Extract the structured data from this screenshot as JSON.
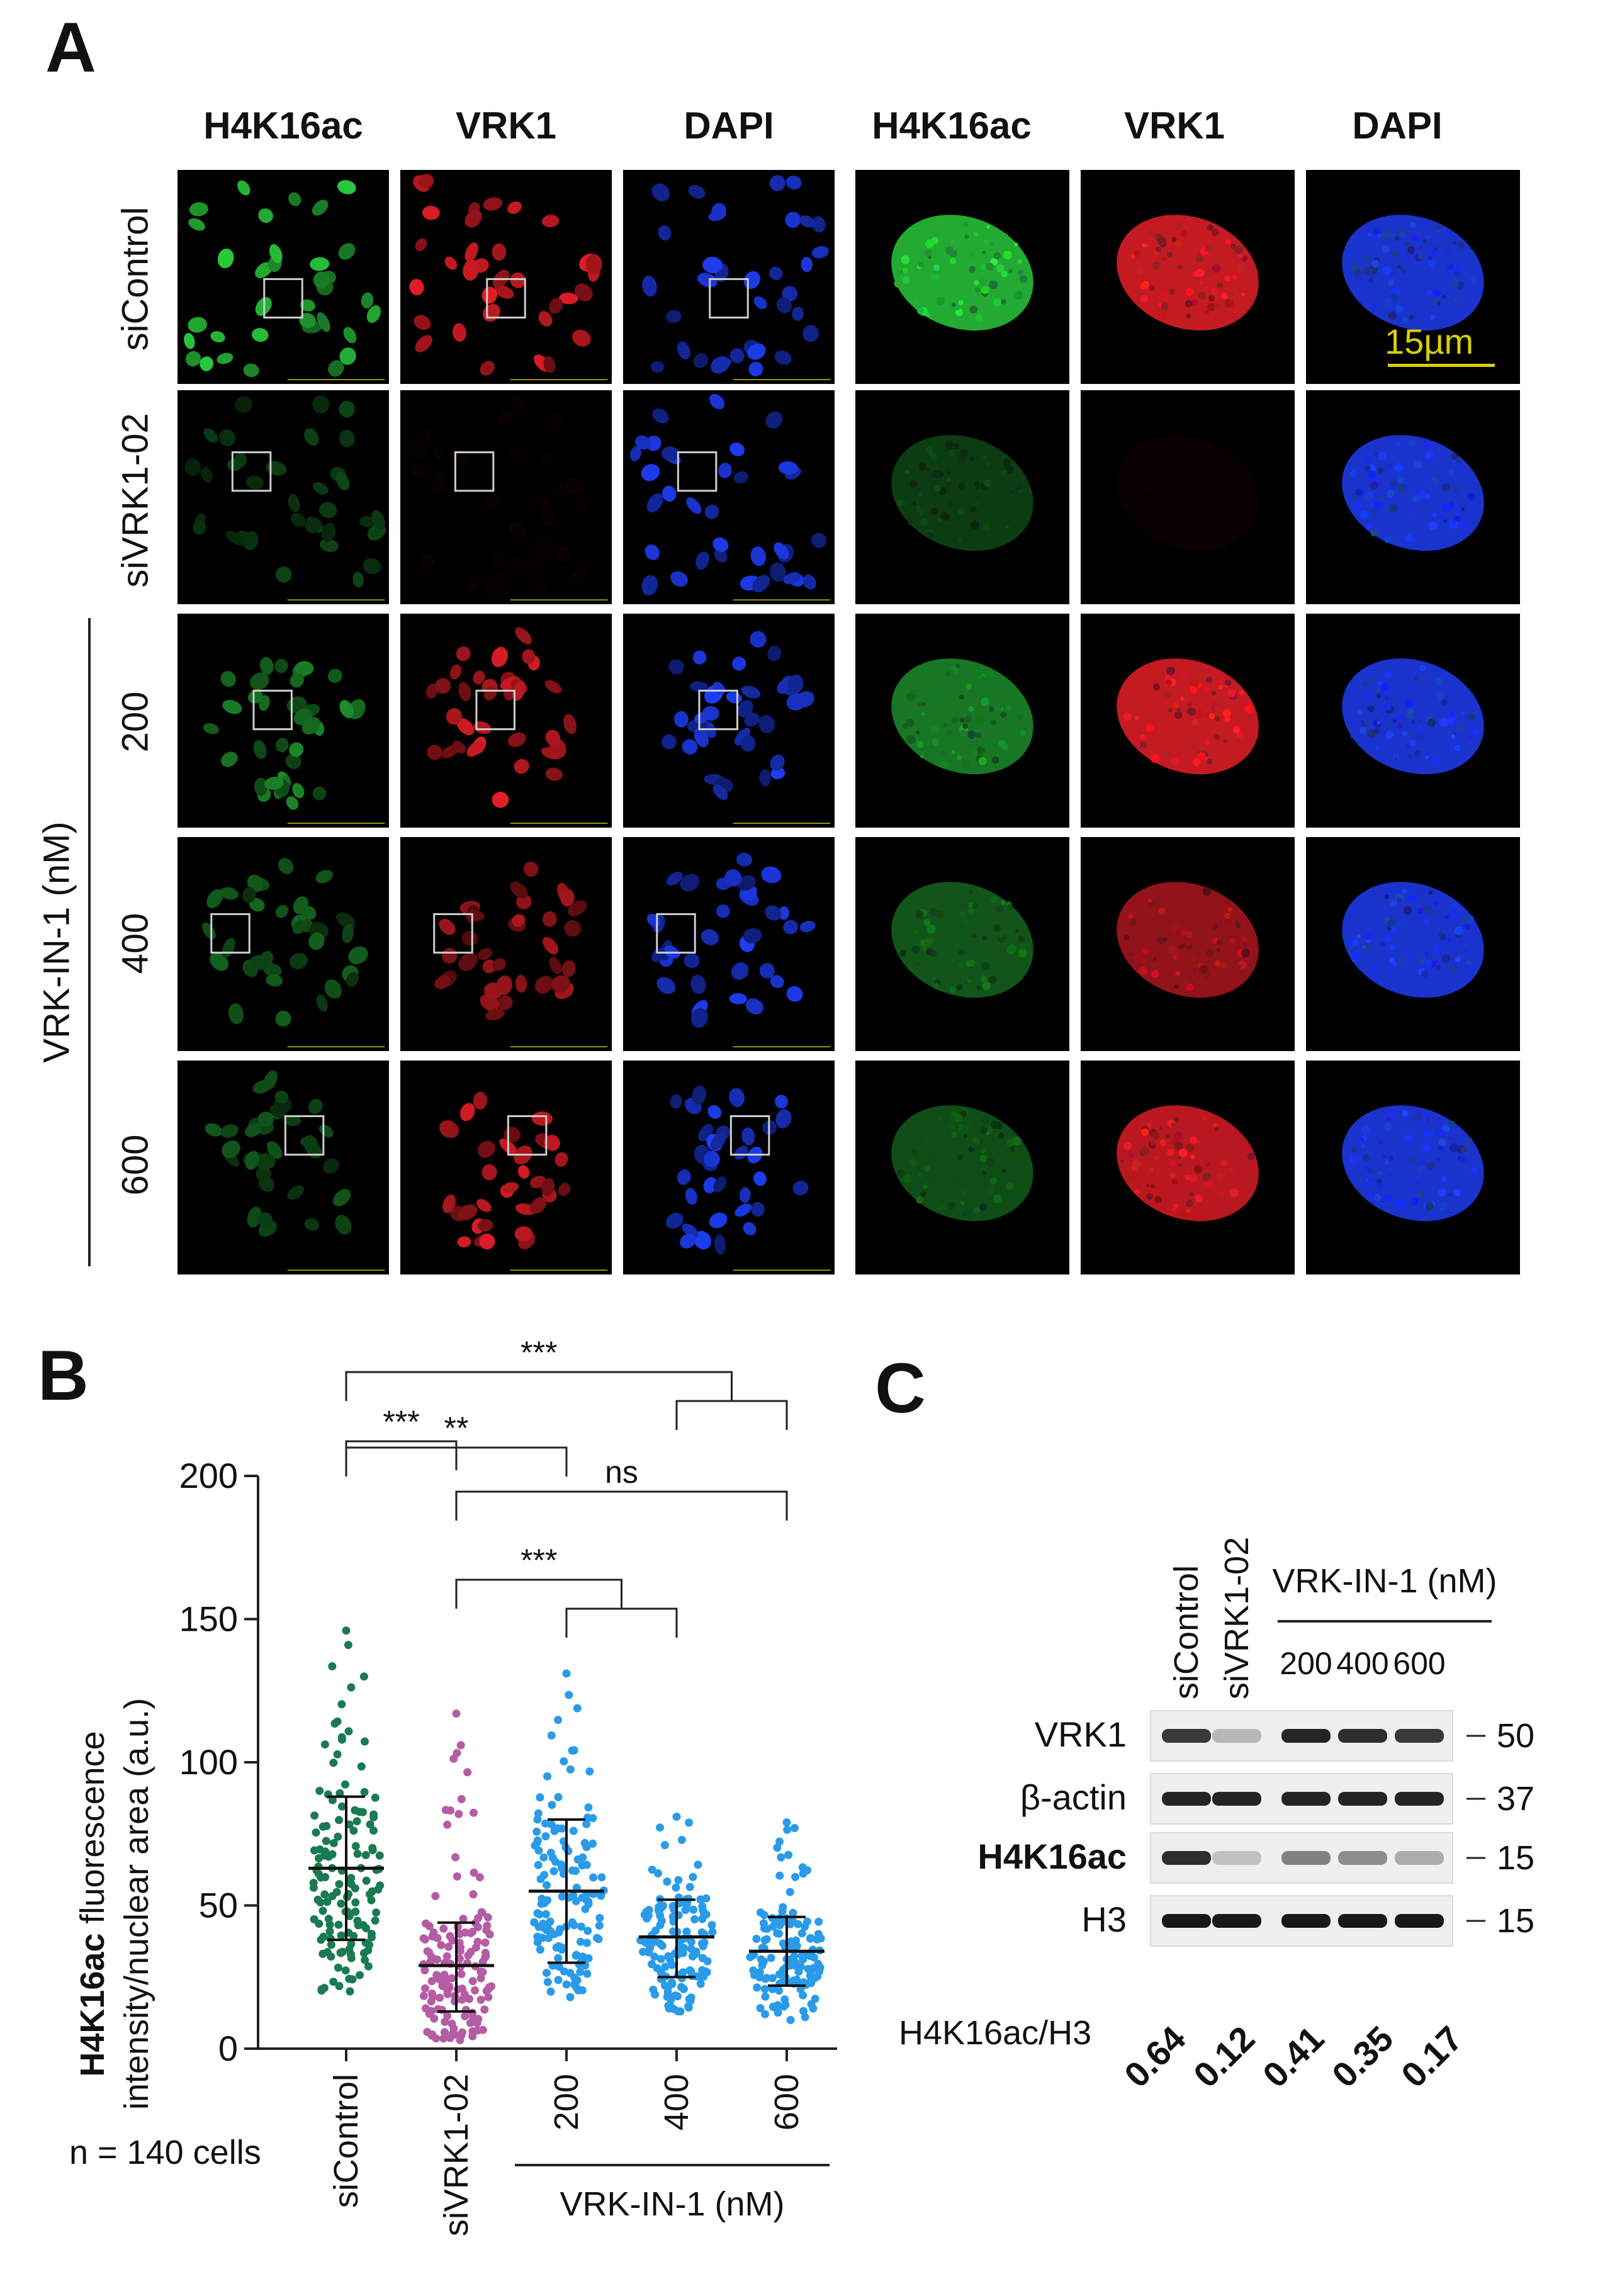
{
  "panel_letters": {
    "a": "A",
    "b": "B",
    "c": "C"
  },
  "panel_a": {
    "channels": [
      "H4K16ac",
      "VRK1",
      "DAPI",
      "H4K16ac",
      "VRK1",
      "DAPI"
    ],
    "channel_colors": [
      "#1fa82a",
      "#e51b24",
      "#1a66d9",
      "#1fa82a",
      "#e51b24",
      "#1a66d9"
    ],
    "rows": [
      "siControl",
      "siVRK1-02",
      "200",
      "400",
      "600"
    ],
    "group_label": "VRK-IN-1 (nM)",
    "scale_bar_label": "15µm",
    "scale_bar_color": "#d8d000",
    "intensity": {
      "green": [
        1.0,
        0.35,
        0.7,
        0.5,
        0.45
      ],
      "red": [
        1.0,
        0.05,
        1.0,
        0.75,
        0.95
      ],
      "blue": [
        1.0,
        1.0,
        1.0,
        1.0,
        1.0
      ]
    }
  },
  "chart_data": {
    "type": "scatter",
    "title": "",
    "ylabel_bold": "H4K16ac",
    "ylabel_rest": " fluorescence",
    "ylabel_line2": "intensity/nuclear area (a.u.)",
    "ylim": [
      0,
      200
    ],
    "yticks": [
      0,
      50,
      100,
      150,
      200
    ],
    "categories": [
      "siControl",
      "siVRK1-02",
      "200",
      "400",
      "600"
    ],
    "group_label": "VRK-IN-1 (nM)",
    "n_label": "n = 140 cells",
    "series": [
      {
        "category": "siControl",
        "color": "#1a7a52",
        "mean": 63,
        "sd_low": 38,
        "sd_high": 88,
        "min": 20,
        "max": 146,
        "n": 140
      },
      {
        "category": "siVRK1-02",
        "color": "#b45ca4",
        "mean": 29,
        "sd_low": 13,
        "sd_high": 44,
        "min": 3,
        "max": 117,
        "n": 140
      },
      {
        "category": "200",
        "color": "#2a9be8",
        "mean": 55,
        "sd_low": 30,
        "sd_high": 80,
        "min": 18,
        "max": 131,
        "n": 140
      },
      {
        "category": "400",
        "color": "#2a9be8",
        "mean": 39,
        "sd_low": 25,
        "sd_high": 52,
        "min": 13,
        "max": 81,
        "n": 140
      },
      {
        "category": "600",
        "color": "#2a9be8",
        "mean": 34,
        "sd_low": 22,
        "sd_high": 46,
        "min": 10,
        "max": 79,
        "n": 140
      }
    ],
    "significance": [
      {
        "label": "***",
        "from": 0,
        "to_group": [
          3,
          4
        ]
      },
      {
        "label": "**",
        "from": 0,
        "to": 2
      },
      {
        "label": "ns",
        "from": 1,
        "to": 4
      },
      {
        "label": "***",
        "from": 0,
        "to": 1
      },
      {
        "label": "***",
        "from": 1,
        "to_group": [
          2,
          3
        ]
      }
    ]
  },
  "panel_c": {
    "lanes": [
      "siControl",
      "siVRK1-02",
      "200",
      "400",
      "600"
    ],
    "group_label": "VRK-IN-1 (nM)",
    "rows": [
      {
        "label": "VRK1",
        "bold": false,
        "marker": "50",
        "intensity": [
          0.85,
          0.25,
          0.95,
          0.9,
          0.85
        ]
      },
      {
        "label": "β-actin",
        "bold": false,
        "marker": "37",
        "intensity": [
          0.95,
          0.95,
          0.95,
          0.95,
          0.95
        ]
      },
      {
        "label": "H4K16ac",
        "bold": true,
        "marker": "15",
        "intensity": [
          0.9,
          0.2,
          0.5,
          0.45,
          0.3
        ]
      },
      {
        "label": "H3",
        "bold": false,
        "marker": "15",
        "intensity": [
          1.0,
          1.0,
          1.0,
          1.0,
          1.0
        ]
      }
    ],
    "ratio_label": "H4K16ac/H3",
    "ratios": [
      "0.64",
      "0.12",
      "0.41",
      "0.35",
      "0.17"
    ]
  }
}
